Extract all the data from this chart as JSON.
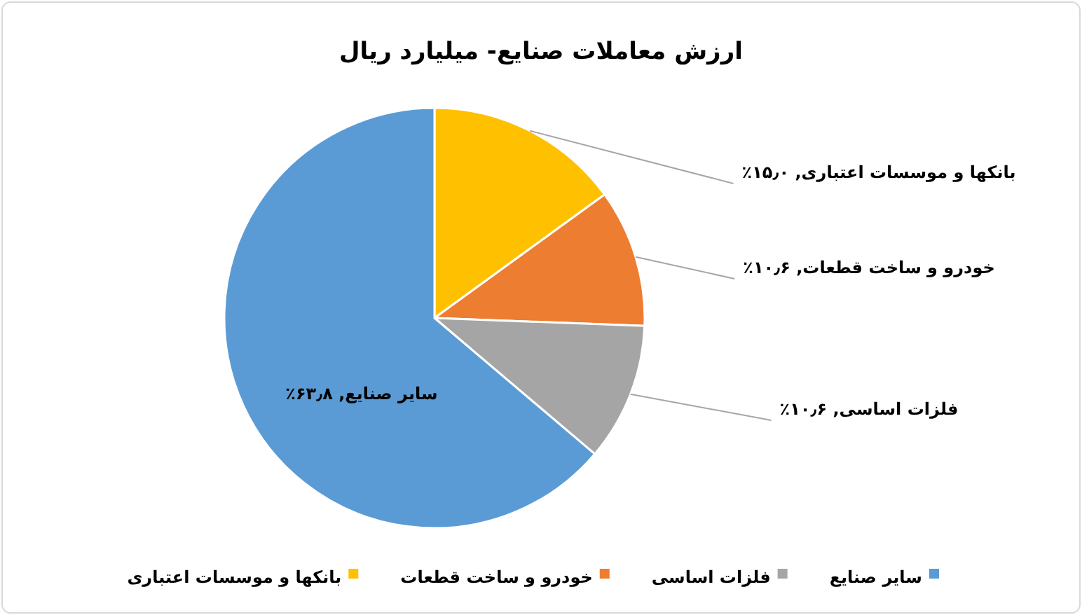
{
  "chart_data": {
    "type": "pie",
    "title": "ارزش معاملات صنایع- میلیارد ریال",
    "categories": [
      "بانکها و موسسات اعتباری",
      "خودرو و ساخت قطعات",
      "فلزات اساسی",
      "سایر صنایع"
    ],
    "values": [
      15.0,
      10.6,
      10.6,
      63.8
    ],
    "colors": [
      "#ffc000",
      "#ed7d31",
      "#a5a5a5",
      "#5b9bd5"
    ],
    "value_labels": [
      "بانکها و موسسات اعتباری, ۱۵٫۰٪",
      "خودرو و ساخت قطعات, ۱۰٫۶٪",
      "فلزات اساسی, ۱۰٫۶٪",
      "سایر صنایع, ۶۳٫۸٪"
    ],
    "legend": "bottom"
  }
}
